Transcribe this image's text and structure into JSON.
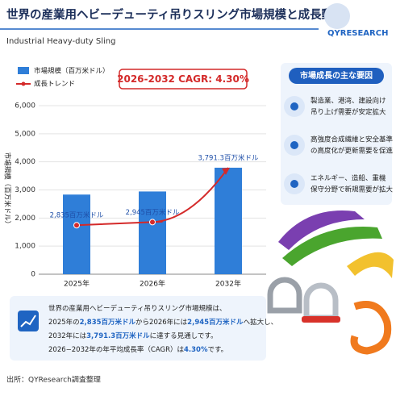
{
  "header": {
    "title": "世界の産業用ヘビーデューティ吊りスリング市場規模と成長動向",
    "subtitle": "Industrial Heavy-duty Sling",
    "logo": "QYRESEARCH"
  },
  "chart_data": {
    "type": "bar",
    "ylabel": "市場規模（百万米ドル）",
    "badge": "2026-2032 CAGR: 4.30%",
    "categories": [
      "2025年",
      "2026年",
      "2032年"
    ],
    "series": [
      {
        "name": "市場規模（百万米ドル）",
        "color": "#2f7ed8",
        "values": [
          2835,
          2945,
          3791.3
        ],
        "value_labels": [
          "2,835百万米ドル",
          "2,945百万米ドル",
          "3,791.3百万米ドル"
        ]
      }
    ],
    "trend": {
      "name": "成長トレンド",
      "color": "#d42a2a"
    },
    "ylim": [
      0,
      6000
    ],
    "yticks": [
      0,
      {
        "value": 1000,
        "label": "1,000"
      },
      {
        "value": 2000,
        "label": "2,000"
      },
      {
        "value": 3000,
        "label": "3,000"
      },
      {
        "value": 4000,
        "label": "4,000"
      },
      {
        "value": 5000,
        "label": "5,000"
      },
      {
        "value": 6000,
        "label": "6,000"
      }
    ],
    "grid": true
  },
  "drivers": {
    "title": "市場成長の主な要因",
    "items": [
      [
        "製造業、港湾、建設向け",
        "吊り上げ需要が安定拡大"
      ],
      [
        "高強度合成繊維と安全基準",
        "の高度化が更新需要を促進"
      ],
      [
        "エネルギー、造船、重機",
        "保守分野で新規需要が拡大"
      ]
    ]
  },
  "summary": {
    "lines": [
      [
        "世界の産業用ヘビーデューティ吊りスリング市場規模は、"
      ],
      [
        "2025年の",
        "2,835百万米ドル",
        "から2026年には",
        "2,945百万米ドル",
        "へ拡大し、"
      ],
      [
        "2032年には",
        "3,791.3百万米ドル",
        "に達する見通しです。"
      ],
      [
        "2026−2032年の年平均成長率（CAGR）は",
        "4.30%",
        "です。"
      ]
    ]
  },
  "source": "出所：QYResearch調査整理"
}
